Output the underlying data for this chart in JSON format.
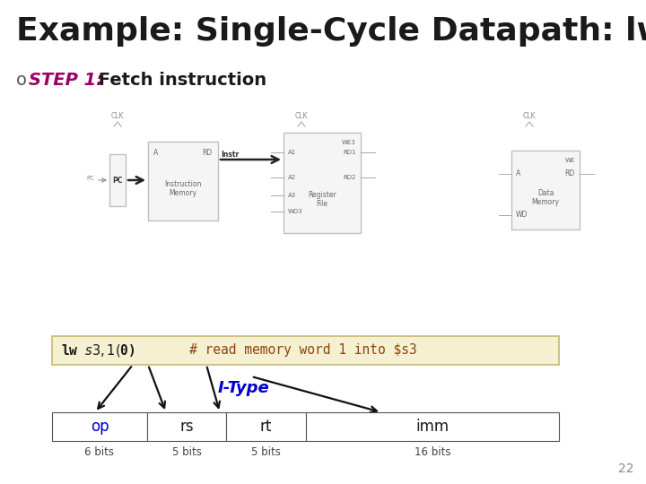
{
  "title": "Example: Single-Cycle Datapath: lw fetch",
  "title_fontsize": 26,
  "title_color": "#1a1a1a",
  "step_label": "STEP 1:",
  "step_label_color": "#990066",
  "step_text": " Fetch instruction",
  "step_fontsize": 14,
  "bg_color": "#ffffff",
  "slide_number": "22",
  "code_bg": "#f5f0d0",
  "code_color_comment": "#8b4513",
  "itype_label": "I-Type",
  "itype_color": "#0000cc",
  "table_fields": [
    "op",
    "rs",
    "rt",
    "imm"
  ],
  "table_bits": [
    "6 bits",
    "5 bits",
    "5 bits",
    "16 bits"
  ],
  "table_bit_vals": [
    6,
    5,
    5,
    16
  ],
  "table_field_color_op": "#0000cc",
  "table_field_color_rest": "#1a1a1a",
  "box_edge": "#c0c0c0",
  "box_fill": "#f5f5f5"
}
